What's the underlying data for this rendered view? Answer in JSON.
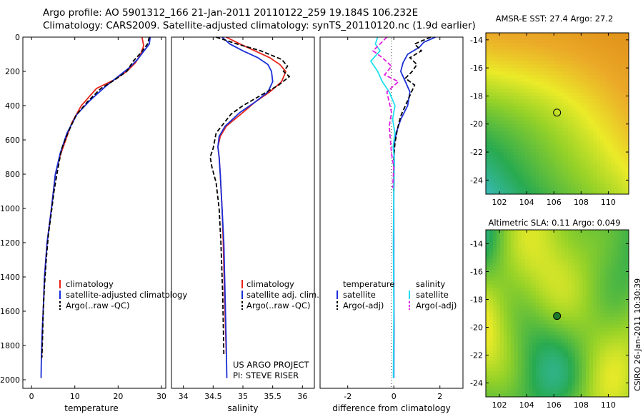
{
  "header": {
    "line1": "Argo profile: AO 5901312_166 21-Jan-2011 20110122_259 19.184S 106.232E",
    "line2": "Climatology: CARS2009. Satellite-adjusted climatology: synTS_20110120.nc (1.9d earlier)"
  },
  "colors": {
    "climatology": "#e8231a",
    "satellite": "#1a2fd8",
    "argo": "#000000",
    "sal_satellite": "#22e0f0",
    "sal_argo": "#e020e0"
  },
  "chart_data": [
    {
      "type": "line",
      "id": "temperature",
      "xlabel": "temperature",
      "ylabel": "",
      "xlim": [
        -2,
        31
      ],
      "ylim": [
        2050,
        0
      ],
      "xticks": [
        0,
        10,
        20,
        30
      ],
      "yticks": [
        0,
        200,
        400,
        600,
        800,
        1000,
        1200,
        1400,
        1600,
        1800,
        2000
      ],
      "legend": [
        "climatology",
        "satellite-adjusted climatology",
        "Argo(..raw -QC)"
      ],
      "legend_position": "bottom-right",
      "series": [
        {
          "name": "climatology",
          "color": "#e8231a",
          "dash": "none",
          "x": [
            25.5,
            25.9,
            25.2,
            24.0,
            22.0,
            19.0,
            15.0,
            11.5,
            9.3,
            7.9,
            6.5,
            5.5,
            4.6,
            3.6,
            3.0,
            2.7,
            2.5,
            2.4,
            2.3
          ],
          "y": [
            0,
            50,
            100,
            150,
            200,
            250,
            300,
            400,
            500,
            600,
            700,
            800,
            1000,
            1200,
            1400,
            1600,
            1700,
            1800,
            1880
          ]
        },
        {
          "name": "satellite-adjusted climatology",
          "color": "#1a2fd8",
          "dash": "none",
          "x": [
            27.4,
            27.2,
            26.0,
            24.5,
            22.5,
            20.0,
            17.0,
            13.5,
            10.5,
            8.2,
            6.6,
            5.5,
            4.6,
            3.6,
            3.0,
            2.7,
            2.5,
            2.35,
            2.25,
            2.2
          ],
          "y": [
            0,
            40,
            80,
            130,
            180,
            230,
            290,
            370,
            450,
            560,
            680,
            800,
            1000,
            1200,
            1400,
            1600,
            1700,
            1800,
            1900,
            1990
          ]
        },
        {
          "name": "Argo(..raw -QC)",
          "color": "#000000",
          "dash": "6,3",
          "x": [
            27.2,
            26.8,
            25.3,
            23.5,
            22.0,
            19.2,
            16.0,
            12.8,
            10.2,
            8.4,
            7.0,
            6.6,
            6.0,
            5.2,
            4.6,
            3.9,
            3.4,
            3.0,
            2.7,
            2.55,
            2.4
          ],
          "y": [
            0,
            40,
            90,
            140,
            200,
            250,
            300,
            380,
            460,
            560,
            650,
            700,
            780,
            900,
            1020,
            1150,
            1300,
            1450,
            1600,
            1750,
            1870
          ]
        }
      ]
    },
    {
      "type": "line",
      "id": "salinity",
      "xlabel": "salinity",
      "ylabel": "",
      "xlim": [
        33.8,
        36.2
      ],
      "ylim": [
        2050,
        0
      ],
      "xticks": [
        34,
        34.5,
        35,
        35.5,
        36
      ],
      "legend": [
        "climatology",
        "satellite adj. clim.",
        "Argo(..raw -QC)"
      ],
      "legend_position": "bottom-right",
      "annotation": [
        "US ARGO PROJECT",
        "PI: STEVE RISER"
      ],
      "series": [
        {
          "name": "climatology",
          "color": "#e8231a",
          "dash": "none",
          "x": [
            34.72,
            34.95,
            35.2,
            35.45,
            35.62,
            35.72,
            35.65,
            35.45,
            35.2,
            35.0,
            34.72,
            34.62,
            34.58,
            34.6,
            34.62,
            34.65,
            34.67,
            34.69,
            34.72
          ],
          "y": [
            0,
            40,
            80,
            120,
            160,
            200,
            260,
            320,
            380,
            440,
            520,
            580,
            640,
            700,
            800,
            1000,
            1200,
            1500,
            1850
          ]
        },
        {
          "name": "satellite adj. clim.",
          "color": "#1a2fd8",
          "dash": "none",
          "x": [
            34.65,
            34.78,
            35.0,
            35.25,
            35.42,
            35.48,
            35.5,
            35.42,
            35.2,
            34.95,
            34.7,
            34.6,
            34.58,
            34.6,
            34.62,
            34.65,
            34.68,
            34.7,
            34.72,
            34.73
          ],
          "y": [
            0,
            40,
            80,
            120,
            160,
            200,
            260,
            320,
            380,
            440,
            520,
            580,
            640,
            700,
            800,
            1000,
            1200,
            1500,
            1800,
            1990
          ]
        },
        {
          "name": "Argo(..raw -QC)",
          "color": "#000000",
          "dash": "6,3",
          "x": [
            34.55,
            34.9,
            35.3,
            35.65,
            35.75,
            35.68,
            35.78,
            35.6,
            35.3,
            35.0,
            34.8,
            34.55,
            34.5,
            34.45,
            34.48,
            34.55,
            34.6,
            34.63,
            34.66,
            34.68
          ],
          "y": [
            0,
            40,
            80,
            130,
            170,
            200,
            230,
            280,
            340,
            400,
            450,
            560,
            650,
            700,
            760,
            850,
            1000,
            1200,
            1500,
            1850
          ]
        }
      ]
    },
    {
      "type": "line",
      "id": "difference",
      "xlabel": "difference from climatology",
      "ylabel": "",
      "xlim": [
        -3.2,
        3.0
      ],
      "ylim": [
        2050,
        0
      ],
      "xticks": [
        -2,
        0,
        2
      ],
      "legend_left": [
        "temperature",
        "satellite",
        "Argo(-adj)"
      ],
      "legend_right": [
        "salinity",
        "satellite",
        "Argo(-adj)"
      ],
      "legend_position": "bottom",
      "series": [
        {
          "name": "temperature satellite",
          "color": "#1a2fd8",
          "dash": "none",
          "x": [
            1.8,
            1.3,
            1.1,
            0.6,
            0.4,
            0.3,
            0.5,
            0.7,
            0.6,
            0.3,
            0.1,
            0.0,
            0.02,
            0.0,
            0.0,
            0.01,
            0.0
          ],
          "y": [
            0,
            30,
            60,
            100,
            150,
            200,
            260,
            320,
            400,
            480,
            560,
            640,
            720,
            900,
            1300,
            1700,
            1990
          ]
        },
        {
          "name": "temperature Argo(-adj)",
          "color": "#000000",
          "dash": "6,3",
          "x": [
            1.6,
            0.9,
            1.2,
            0.7,
            1.0,
            0.8,
            0.5,
            0.9,
            0.7,
            0.5,
            0.3,
            0.15,
            0.05,
            0.0,
            0.0
          ],
          "y": [
            0,
            40,
            80,
            120,
            160,
            200,
            240,
            280,
            340,
            400,
            460,
            540,
            620,
            700,
            900
          ]
        },
        {
          "name": "salinity satellite",
          "color": "#22e0f0",
          "dash": "none",
          "x": [
            -0.7,
            -0.8,
            -0.6,
            -1.0,
            -0.7,
            -0.5,
            -0.2,
            0.05,
            -0.05,
            0.05,
            -0.03,
            0.02,
            0.0,
            -0.02,
            0.0,
            -0.02
          ],
          "y": [
            0,
            40,
            80,
            140,
            200,
            260,
            320,
            400,
            480,
            560,
            640,
            720,
            900,
            1200,
            1600,
            1990
          ]
        },
        {
          "name": "salinity Argo(-adj)",
          "color": "#e020e0",
          "dash": "6,3",
          "x": [
            -0.3,
            -0.6,
            -0.9,
            -0.5,
            -0.1,
            -0.4,
            0.2,
            -0.3,
            -0.2,
            -0.1,
            -0.2,
            -0.15,
            -0.1,
            0.0,
            -0.05
          ],
          "y": [
            0,
            40,
            80,
            120,
            170,
            220,
            260,
            320,
            380,
            440,
            520,
            600,
            680,
            760,
            880
          ]
        }
      ]
    },
    {
      "type": "heatmap",
      "id": "sst_map",
      "title": "AMSR-E SST: 27.4 Argo: 27.2",
      "xlim": [
        101,
        111.5
      ],
      "ylim": [
        -25,
        -13.5
      ],
      "xticks": [
        102,
        104,
        106,
        108,
        110
      ],
      "yticks": [
        -14,
        -16,
        -18,
        -20,
        -22,
        -24
      ],
      "marker": {
        "lon": 106.232,
        "lat": -19.184
      }
    },
    {
      "type": "heatmap",
      "id": "sla_map",
      "title": "Altimetric SLA: 0.11 Argo: 0.049",
      "xlim": [
        101,
        111.5
      ],
      "ylim": [
        -25,
        -13
      ],
      "xticks": [
        102,
        104,
        106,
        108,
        110
      ],
      "yticks": [
        -14,
        -16,
        -18,
        -20,
        -22,
        -24
      ],
      "marker": {
        "lon": 106.232,
        "lat": -19.184
      },
      "side_label": "CSIRO 26-Jan-2011 10:30:39"
    }
  ]
}
